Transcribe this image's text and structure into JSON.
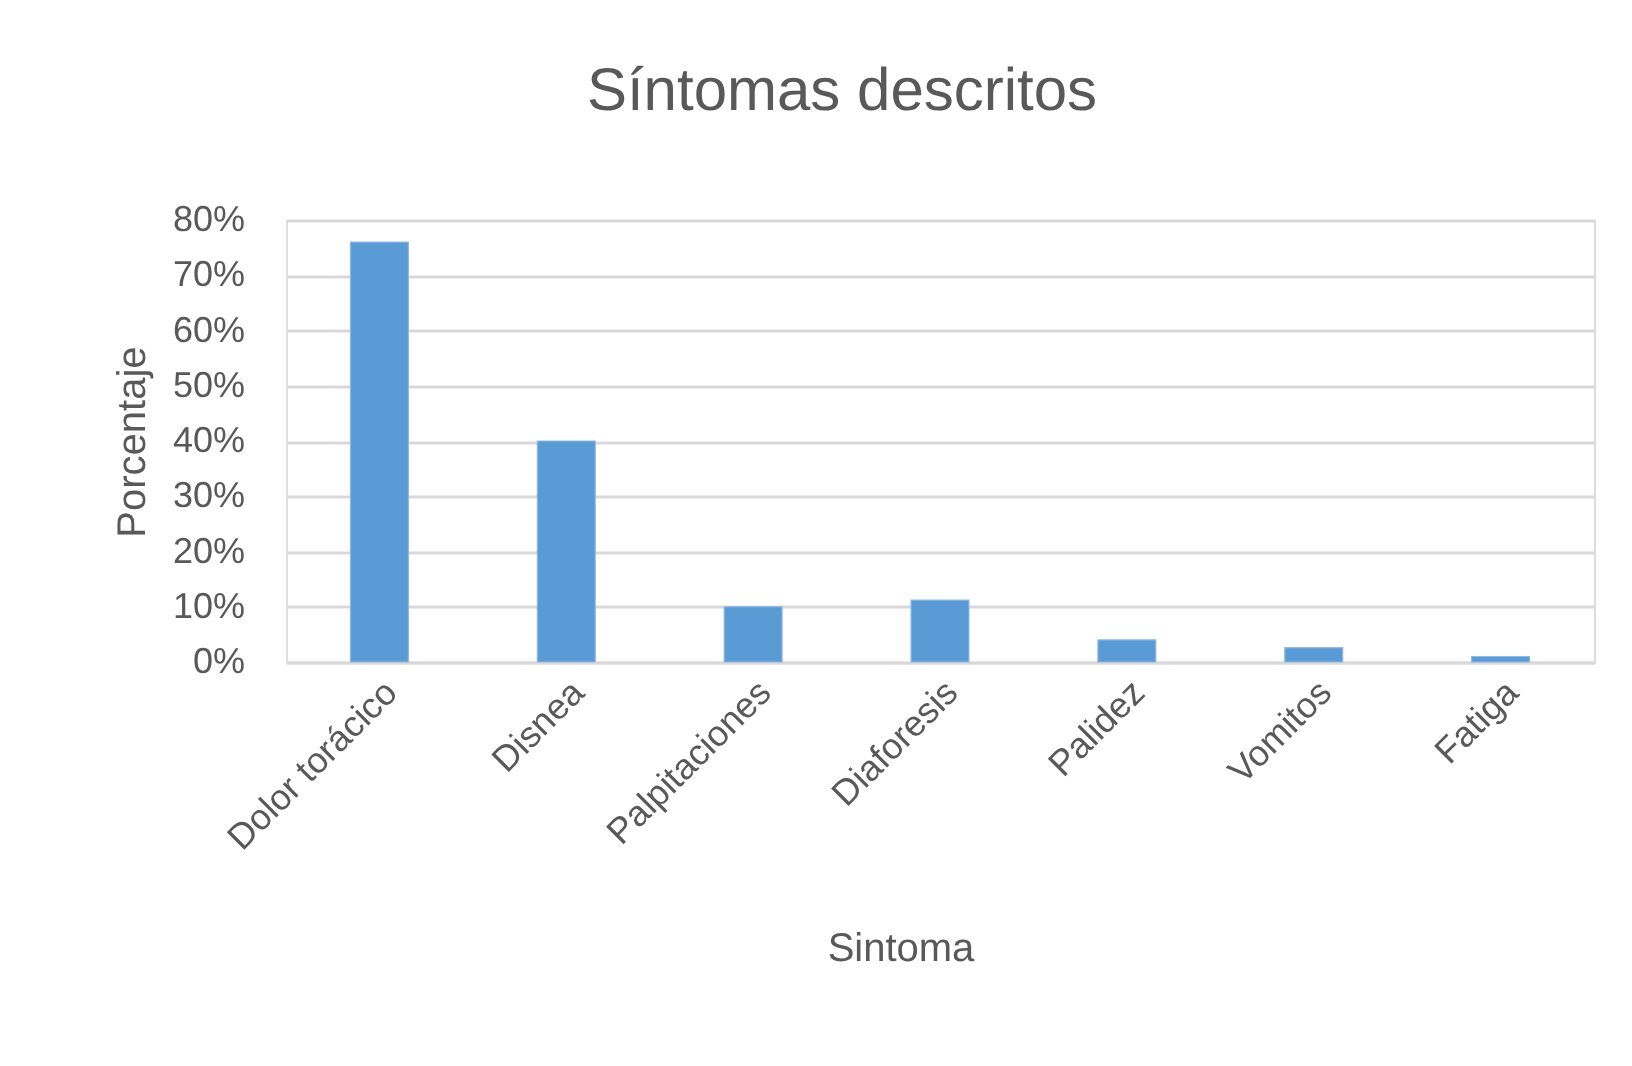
{
  "chart_data": {
    "type": "bar",
    "title": "Síntomas descritos",
    "xlabel": "Sintoma",
    "ylabel": "Porcentaje",
    "categories": [
      "Dolor torácico",
      "Disnea",
      "Palpitaciones",
      "Diaforesis",
      "Palidez",
      "Vomitos",
      "Fatiga"
    ],
    "values": [
      76,
      40,
      10,
      11.2,
      4,
      2.6,
      1
    ],
    "color": "#5b9bd5",
    "ylim": [
      0,
      80
    ],
    "yticks": [
      {
        "value": 0,
        "label": "0%"
      },
      {
        "value": 10,
        "label": "10%"
      },
      {
        "value": 20,
        "label": "20%"
      },
      {
        "value": 30,
        "label": "30%"
      },
      {
        "value": 40,
        "label": "40%"
      },
      {
        "value": 50,
        "label": "50%"
      },
      {
        "value": 60,
        "label": "60%"
      },
      {
        "value": 70,
        "label": "70%"
      },
      {
        "value": 80,
        "label": "80%"
      }
    ],
    "grid": "y"
  }
}
